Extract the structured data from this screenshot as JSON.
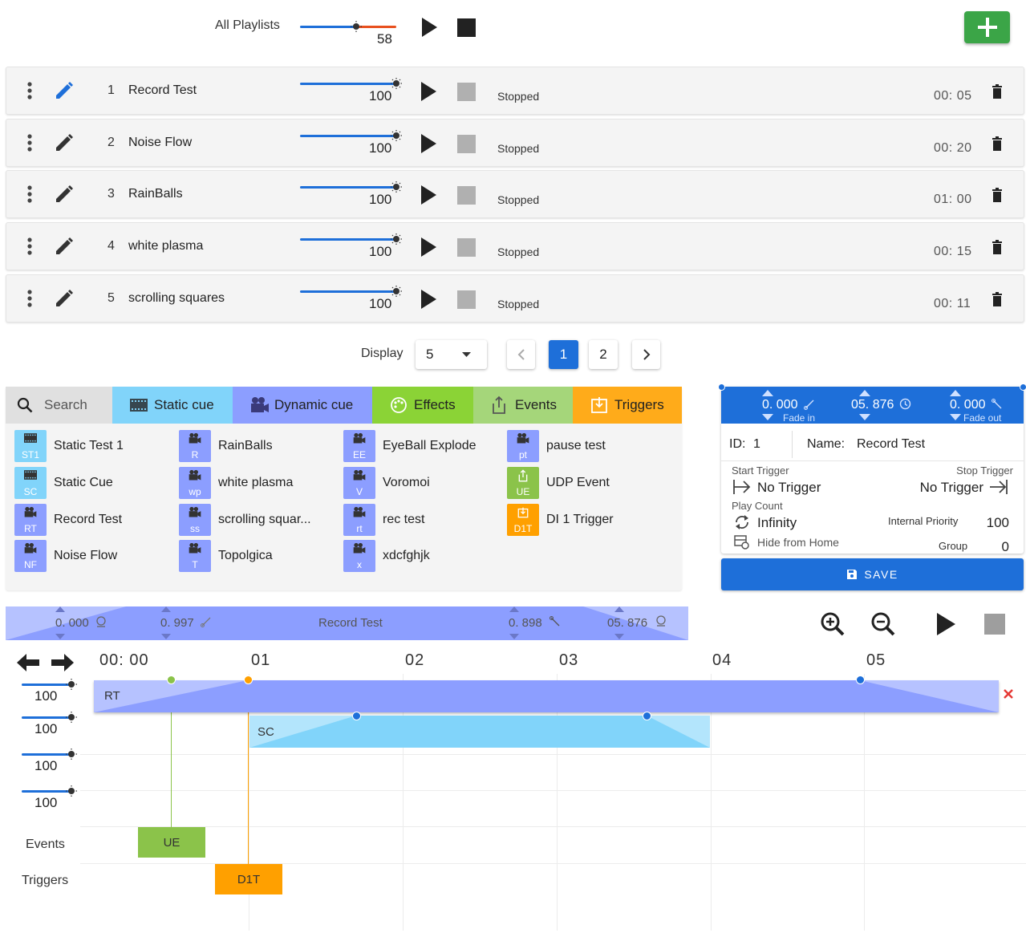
{
  "top": {
    "title": "All Playlists",
    "volume": 58,
    "volume_label": "58",
    "icons": [
      "play-icon",
      "stop-icon",
      "plus-icon"
    ]
  },
  "playlists": [
    {
      "index": "1",
      "name": "Record Test",
      "volume": "100",
      "status": "Stopped",
      "duration": "00: 05",
      "edit_active": true
    },
    {
      "index": "2",
      "name": "Noise Flow",
      "volume": "100",
      "status": "Stopped",
      "duration": "00: 20",
      "edit_active": false
    },
    {
      "index": "3",
      "name": "RainBalls",
      "volume": "100",
      "status": "Stopped",
      "duration": "01: 00",
      "edit_active": false
    },
    {
      "index": "4",
      "name": "white plasma",
      "volume": "100",
      "status": "Stopped",
      "duration": "00: 15",
      "edit_active": false
    },
    {
      "index": "5",
      "name": "scrolling squares",
      "volume": "100",
      "status": "Stopped",
      "duration": "00: 11",
      "edit_active": false
    }
  ],
  "pagination": {
    "display_label": "Display",
    "page_size": "5",
    "pages": [
      "1",
      "2"
    ],
    "current": "1"
  },
  "library": {
    "tabs": [
      {
        "label": "Search",
        "color": "#e0e0e0"
      },
      {
        "label": "Static cue",
        "color": "#81d4fa"
      },
      {
        "label": "Dynamic cue",
        "color": "#8c9eff"
      },
      {
        "label": "Effects",
        "color": "#8bd336"
      },
      {
        "label": "Events",
        "color": "#a5d67a"
      },
      {
        "label": "Triggers",
        "color": "#ffab1a"
      }
    ],
    "columns": [
      [
        {
          "code": "ST1",
          "name": "Static Test 1",
          "type": "static"
        },
        {
          "code": "SC",
          "name": "Static Cue",
          "type": "static"
        },
        {
          "code": "RT",
          "name": "Record Test",
          "type": "dynamic"
        },
        {
          "code": "NF",
          "name": "Noise Flow",
          "type": "dynamic"
        }
      ],
      [
        {
          "code": "R",
          "name": "RainBalls",
          "type": "dynamic"
        },
        {
          "code": "wp",
          "name": "white plasma",
          "type": "dynamic"
        },
        {
          "code": "ss",
          "name": "scrolling squar...",
          "type": "dynamic"
        },
        {
          "code": "T",
          "name": "Topolgica",
          "type": "dynamic"
        }
      ],
      [
        {
          "code": "EE",
          "name": "EyeBall Explode",
          "type": "dynamic"
        },
        {
          "code": "V",
          "name": "Voromoi",
          "type": "dynamic"
        },
        {
          "code": "rt",
          "name": "rec test",
          "type": "dynamic"
        },
        {
          "code": "x",
          "name": "xdcfghjk",
          "type": "dynamic"
        }
      ],
      [
        {
          "code": "pt",
          "name": "pause test",
          "type": "dynamic"
        },
        {
          "code": "UE",
          "name": "UDP Event",
          "type": "event"
        },
        {
          "code": "D1T",
          "name": "DI 1 Trigger",
          "type": "trigger"
        }
      ]
    ]
  },
  "details": {
    "fade_in": "0. 000",
    "fade_in_label": "Fade in",
    "duration": "05. 876",
    "fade_out": "0. 000",
    "fade_out_label": "Fade out",
    "id_label": "ID:",
    "id": "1",
    "name_label": "Name:",
    "name": "Record Test",
    "start_trigger_label": "Start Trigger",
    "start_trigger": "No Trigger",
    "stop_trigger_label": "Stop Trigger",
    "stop_trigger": "No Trigger",
    "play_count_label": "Play Count",
    "play_count": "Infinity",
    "internal_priority_label": "Internal Priority",
    "internal_priority": "100",
    "hide_label": "Hide from Home",
    "group_label": "Group",
    "group": "0",
    "save_label": "SAVE"
  },
  "timeline": {
    "strip": {
      "start": "0. 000",
      "fade_in": "0. 997",
      "name": "Record Test",
      "fade_out": "0. 898",
      "end": "05. 876"
    },
    "ticks": [
      "00: 00",
      "01",
      "02",
      "03",
      "04",
      "05"
    ],
    "lane_volumes": [
      "100",
      "100",
      "100",
      "100"
    ],
    "events_label": "Events",
    "triggers_label": "Triggers",
    "cue_rt": "RT",
    "cue_sc": "SC",
    "event_ue": "UE",
    "trigger_d1t": "D1T",
    "colors": {
      "dynamic": "#8c9eff",
      "static": "#81d4fa",
      "event": "#8bc34a",
      "trigger": "#ffa000"
    }
  }
}
